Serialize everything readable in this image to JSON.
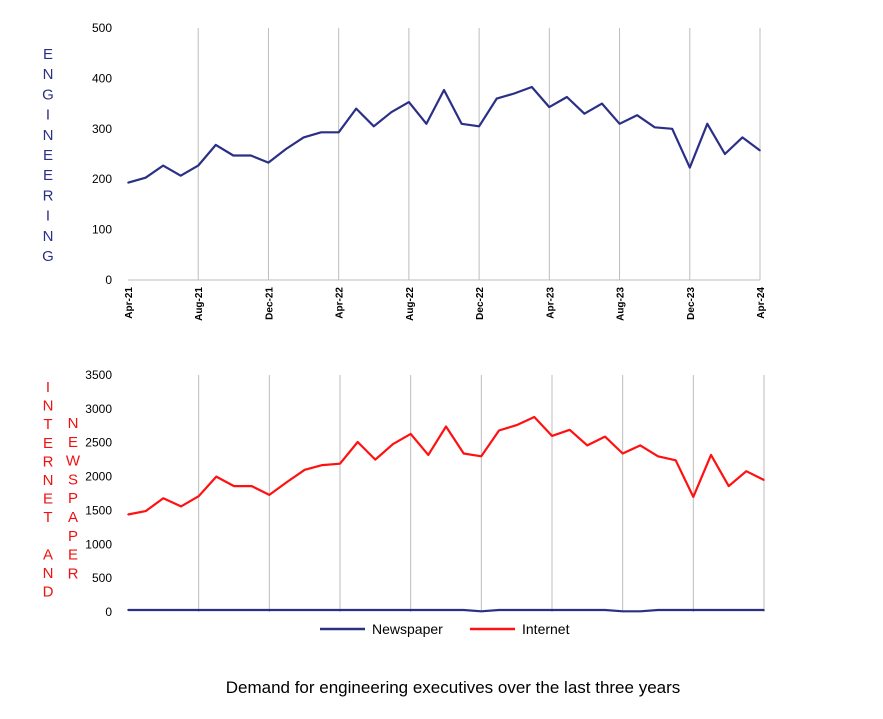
{
  "colors": {
    "newspaper": "#2b2f86",
    "internet": "#ff1111",
    "engineering_label": "#2b2f86",
    "internet_label": "#ee1111",
    "grid": "#bdbdbd",
    "axis": "#bdbdbd"
  },
  "caption": "Demand for engineering executives over the last three years",
  "chart_data": [
    {
      "type": "line",
      "ylabel": "ENGINEERING",
      "ylim": [
        0,
        500
      ],
      "yticks": [
        0,
        100,
        200,
        300,
        400,
        500
      ],
      "x_tick_labels": [
        "Apr-21",
        "Aug-21",
        "Dec-21",
        "Apr-22",
        "Aug-22",
        "Dec-22",
        "Apr-23",
        "Aug-23",
        "Dec-23",
        "Apr-24"
      ],
      "x_tick_indices": [
        0,
        4,
        8,
        12,
        16,
        20,
        24,
        28,
        32,
        36
      ],
      "grid": "vertical",
      "series": [
        {
          "name": "Engineering",
          "color_key": "newspaper",
          "values": [
            193,
            203,
            227,
            207,
            227,
            268,
            247,
            247,
            233,
            260,
            283,
            293,
            293,
            340,
            305,
            333,
            353,
            310,
            377,
            310,
            305,
            360,
            370,
            383,
            343,
            363,
            330,
            350,
            310,
            327,
            303,
            300,
            223,
            310,
            250,
            283,
            257
          ]
        }
      ]
    },
    {
      "type": "line",
      "ylabel_left": "INTERNET AND",
      "ylabel_right": "NEWSPAPER",
      "ylim": [
        0,
        3500
      ],
      "yticks": [
        0,
        500,
        1000,
        1500,
        2000,
        2500,
        3000,
        3500
      ],
      "grid": "vertical",
      "legend": "bottom",
      "series": [
        {
          "name": "Newspaper",
          "color_key": "newspaper",
          "values": [
            30,
            30,
            30,
            30,
            30,
            30,
            30,
            30,
            30,
            30,
            30,
            30,
            30,
            30,
            30,
            30,
            30,
            30,
            30,
            30,
            10,
            30,
            30,
            30,
            30,
            30,
            30,
            30,
            10,
            10,
            30,
            30,
            30,
            30,
            30,
            30,
            30
          ]
        },
        {
          "name": "Internet",
          "color_key": "internet",
          "values": [
            1440,
            1490,
            1680,
            1560,
            1710,
            2000,
            1860,
            1860,
            1730,
            1920,
            2100,
            2170,
            2190,
            2510,
            2250,
            2480,
            2630,
            2320,
            2740,
            2340,
            2300,
            2680,
            2760,
            2880,
            2600,
            2690,
            2460,
            2590,
            2340,
            2460,
            2300,
            2240,
            1700,
            2320,
            1860,
            2080,
            1950
          ]
        }
      ]
    }
  ]
}
